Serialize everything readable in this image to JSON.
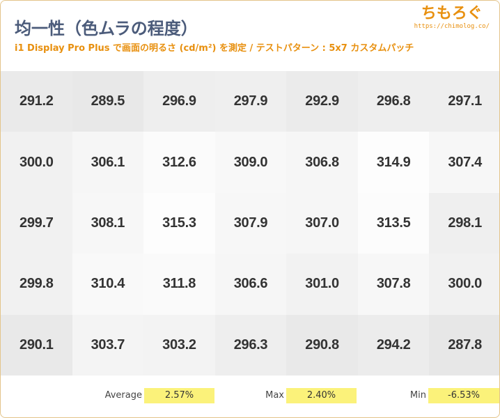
{
  "header": {
    "title": "均一性（色ムラの程度）",
    "subtitle": "i1 Display Pro Plus で画面の明るさ (cd/m²) を測定 / テストパターン : 5x7 カスタムパッチ",
    "brand": "ちもろぐ",
    "brand_url": "https://chimolog.co/"
  },
  "chart_data": {
    "type": "heatmap",
    "rows": 5,
    "cols": 7,
    "values": [
      [
        291.2,
        289.5,
        296.9,
        297.9,
        292.9,
        296.8,
        297.1
      ],
      [
        300.0,
        306.1,
        312.6,
        309.0,
        306.8,
        314.9,
        307.4
      ],
      [
        299.7,
        308.1,
        315.3,
        307.9,
        307.0,
        313.5,
        298.1
      ],
      [
        299.8,
        310.4,
        311.8,
        306.6,
        301.0,
        307.8,
        300.0
      ],
      [
        290.1,
        303.7,
        303.2,
        296.3,
        290.8,
        294.2,
        287.8
      ]
    ]
  },
  "stats": {
    "average_label": "Average",
    "average_value": "2.57%",
    "max_label": "Max",
    "max_value": "2.40%",
    "min_label": "Min",
    "min_value": "-6.53%"
  },
  "colors": {
    "title": "#4b5b7a",
    "accent": "#e8900f",
    "highlight": "#fbf27a"
  }
}
